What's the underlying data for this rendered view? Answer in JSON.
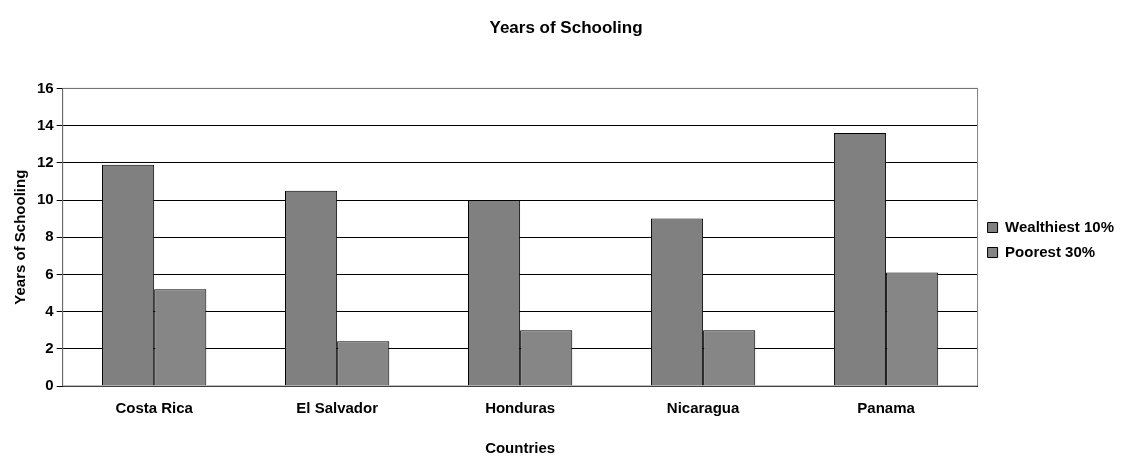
{
  "chart_data": {
    "type": "bar",
    "title": "Years of Schooling",
    "xlabel": "Countries",
    "ylabel": "Years of Schooling",
    "categories": [
      "Costa Rica",
      "El Salvador",
      "Honduras",
      "Nicaragua",
      "Panama"
    ],
    "series": [
      {
        "name": "Wealthiest 10%",
        "color": "#808080",
        "values": [
          11.9,
          10.5,
          10.0,
          9.0,
          13.6
        ]
      },
      {
        "name": "Poorest 30%",
        "color": "#868686",
        "values": [
          5.2,
          2.4,
          3.0,
          3.0,
          6.1
        ]
      }
    ],
    "ylim": [
      0,
      16
    ],
    "yticks": [
      0,
      2,
      4,
      6,
      8,
      10,
      12,
      14,
      16
    ],
    "grid": "y",
    "legend": "right"
  }
}
